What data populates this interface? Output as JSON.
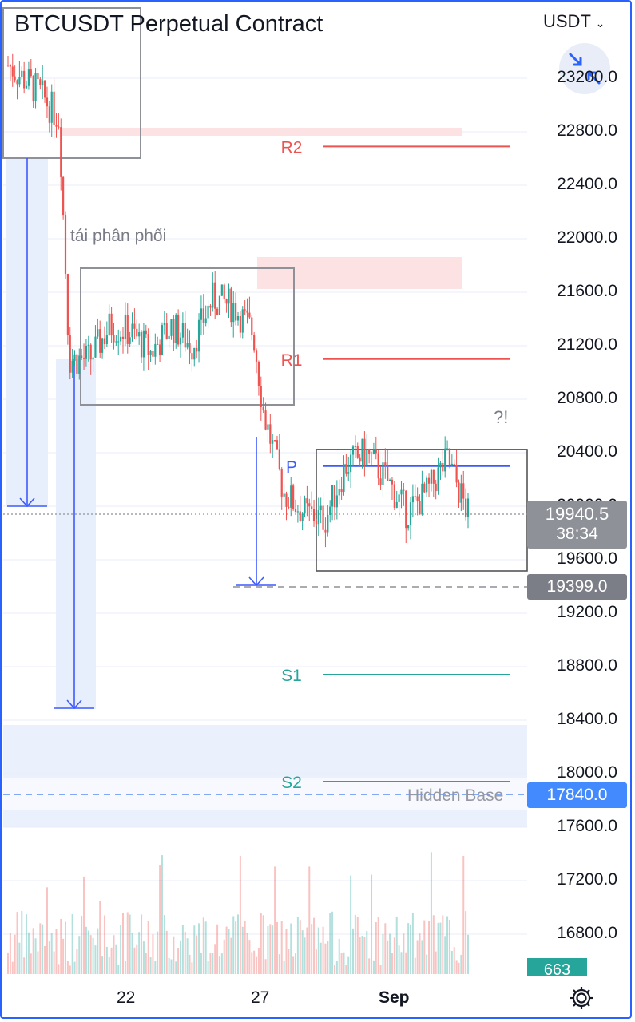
{
  "header": {
    "title": "BTCUSDT Perpetual Contract",
    "currency_selector": "USDT",
    "currency_chevron_icon": "chevron-down-icon",
    "collapse_icon": "collapse-arrows-icon"
  },
  "chart_data": {
    "type": "candlestick",
    "symbol": "BTCUSDT Perpetual Contract",
    "y_axis": {
      "ticks": [
        "23200.0",
        "22800.0",
        "22400.0",
        "22000.0",
        "21600.0",
        "21200.0",
        "20800.0",
        "20400.0",
        "20000.0",
        "19600.0",
        "19200.0",
        "18800.0",
        "18400.0",
        "18000.0",
        "17600.0",
        "17200.0",
        "16800.0"
      ],
      "range": [
        16550,
        23600
      ]
    },
    "x_axis": {
      "ticks": [
        "22",
        "27",
        "Sep"
      ]
    },
    "price_series_outline": [
      {
        "t": 0,
        "p": 23300
      },
      {
        "t": 0.06,
        "p": 23100
      },
      {
        "t": 0.1,
        "p": 22900
      },
      {
        "t": 0.12,
        "p": 21100
      },
      {
        "t": 0.16,
        "p": 21100
      },
      {
        "t": 0.2,
        "p": 21350
      },
      {
        "t": 0.24,
        "p": 21300
      },
      {
        "t": 0.28,
        "p": 21150
      },
      {
        "t": 0.32,
        "p": 21350
      },
      {
        "t": 0.36,
        "p": 21200
      },
      {
        "t": 0.4,
        "p": 21550
      },
      {
        "t": 0.44,
        "p": 21500
      },
      {
        "t": 0.48,
        "p": 21300
      },
      {
        "t": 0.5,
        "p": 20700
      },
      {
        "t": 0.54,
        "p": 20100
      },
      {
        "t": 0.58,
        "p": 19950
      },
      {
        "t": 0.62,
        "p": 19900
      },
      {
        "t": 0.66,
        "p": 20300
      },
      {
        "t": 0.7,
        "p": 20400
      },
      {
        "t": 0.74,
        "p": 20200
      },
      {
        "t": 0.78,
        "p": 19950
      },
      {
        "t": 0.82,
        "p": 20100
      },
      {
        "t": 0.86,
        "p": 20350
      },
      {
        "t": 0.9,
        "p": 19940.5
      }
    ],
    "levels": [
      {
        "name": "R2",
        "price": 22690,
        "color": "#ef5350"
      },
      {
        "name": "R1",
        "price": 21100,
        "color": "#ef5350"
      },
      {
        "name": "P",
        "price": 20300,
        "color": "#3d5afe"
      },
      {
        "name": "S1",
        "price": 18740,
        "color": "#26a69a"
      },
      {
        "name": "S2",
        "price": 17940,
        "color": "#26a69a"
      }
    ],
    "annotations": {
      "redistribution_label": "tái phân phối",
      "question_label": "?!",
      "hidden_base_label": "Hidden Base"
    },
    "last_price": "19940.5",
    "countdown": "38:34",
    "target_price": "19399.0",
    "hidden_base_price": "17840.0",
    "volume_value": "663"
  },
  "footer": {
    "settings_icon": "gear-icon"
  },
  "colors": {
    "up": "#26a69a",
    "down": "#ef5350",
    "blue": "#2962ff",
    "level_blue": "#3d5afe",
    "grid": "#f0f3fa"
  }
}
